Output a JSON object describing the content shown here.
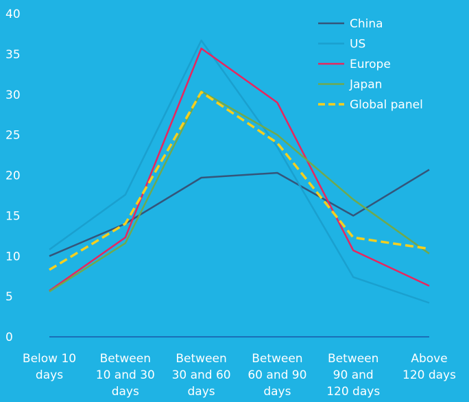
{
  "chart_data": {
    "type": "line",
    "categories": [
      [
        "Below 10",
        "days"
      ],
      [
        "Between",
        "10 and 30",
        "days"
      ],
      [
        "Between",
        "30 and 60",
        "days"
      ],
      [
        "Between",
        "60 and 90",
        "days"
      ],
      [
        "Between",
        "90 and",
        "120 days"
      ],
      [
        "Above",
        "120 days"
      ]
    ],
    "y_ticks": [
      "0",
      "5",
      "10",
      "15",
      "20",
      "25",
      "30",
      "35",
      "40"
    ],
    "ylim": [
      0,
      40
    ],
    "legend_position": "top-right",
    "grid": false,
    "series": [
      {
        "name": "China",
        "color": "#34557a",
        "style": "solid",
        "values": [
          10,
          14,
          19.7,
          20.3,
          15,
          20.7
        ]
      },
      {
        "name": "US",
        "color": "#1aa0cf",
        "style": "solid",
        "values": [
          10.8,
          17.6,
          36.7,
          23.5,
          7.4,
          4.2
        ]
      },
      {
        "name": "Europe",
        "color": "#e8265e",
        "style": "solid",
        "values": [
          5.7,
          12.3,
          35.7,
          29,
          10.7,
          6.3
        ]
      },
      {
        "name": "Japan",
        "color": "#6fa94e",
        "style": "solid",
        "values": [
          5.6,
          11.6,
          30.4,
          25,
          17,
          10.3
        ]
      },
      {
        "name": "Global panel",
        "color": "#f6cf1e",
        "style": "dashed",
        "values": [
          8.3,
          14,
          30.3,
          24,
          12.3,
          10.9
        ]
      }
    ]
  }
}
